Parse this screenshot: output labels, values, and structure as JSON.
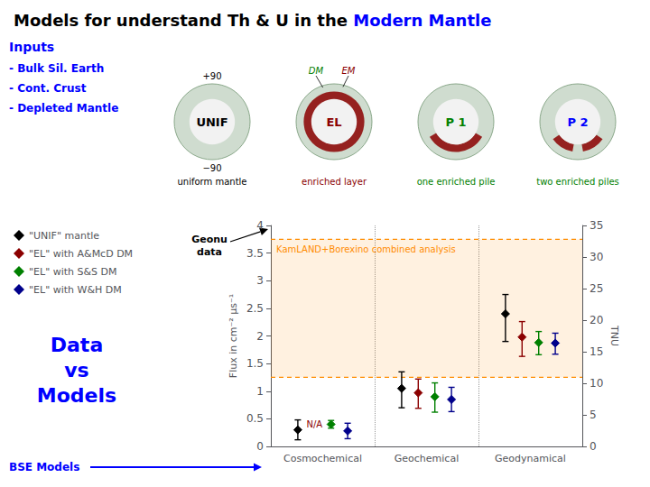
{
  "chart_data": {
    "type": "scatter",
    "title": "Models for understand Th & U in the Modern Mantle",
    "categories": [
      "Cosmochemical",
      "Geochemical",
      "Geodynamical"
    ],
    "series": [
      {
        "name": "\"UNIF\" mantle",
        "color": "#000000",
        "marker": "diamond",
        "values": [
          0.3,
          1.05,
          2.4
        ],
        "yerr_low": [
          0.18,
          0.35,
          0.5
        ],
        "yerr_high": [
          0.18,
          0.3,
          0.35
        ]
      },
      {
        "name": "\"EL\" with A&McD DM",
        "color": "#8b0000",
        "marker": "diamond",
        "values": [
          null,
          0.97,
          1.98
        ],
        "yerr_low": [
          null,
          0.28,
          0.35
        ],
        "yerr_high": [
          null,
          0.25,
          0.28
        ]
      },
      {
        "name": "\"EL\" with S&S DM",
        "color": "#008000",
        "marker": "diamond",
        "values": [
          0.4,
          0.9,
          1.88
        ],
        "yerr_low": [
          0.07,
          0.28,
          0.22
        ],
        "yerr_high": [
          0.07,
          0.25,
          0.2
        ]
      },
      {
        "name": "\"EL\" with W&H DM",
        "color": "#00008b",
        "marker": "diamond",
        "values": [
          0.28,
          0.85,
          1.87
        ],
        "yerr_low": [
          0.14,
          0.22,
          0.2
        ],
        "yerr_high": [
          0.14,
          0.22,
          0.18
        ]
      }
    ],
    "ylabel": "Flux in cm⁻² μs⁻¹",
    "ylim": [
      0,
      4
    ],
    "yticks": [
      0,
      0.5,
      1,
      1.5,
      2,
      2.5,
      3,
      3.5,
      4
    ],
    "y2label": "TNU",
    "y2lim": [
      0,
      35
    ],
    "y2ticks": [
      0,
      5,
      10,
      15,
      20,
      25,
      30,
      35
    ],
    "grid": false,
    "legend": "upper left",
    "band": {
      "label": "KamLAND+Borexino combined analysis",
      "from": 1.25,
      "to": 3.75,
      "color": "#ff8c00"
    },
    "annotations": {
      "title_highlight": {
        "text": "Modern Mantle",
        "color": "#0000ff"
      },
      "inputs": {
        "text": [
          "Inputs",
          "- Bulk Sil. Earth",
          "- Cont. Crust",
          "- Depleted Mantle"
        ],
        "color": "#0000ff"
      },
      "side_label": {
        "text": "Data\nvs\nModels",
        "color": "#0000ff"
      },
      "bse_label": {
        "text": "BSE Models",
        "color": "#0000ff"
      },
      "geonu_label": {
        "text": "Geonu\ndata",
        "color": "#000000"
      },
      "na_label": {
        "text": "N/A",
        "x": "Cosmochemical",
        "color": "#8b0000"
      }
    },
    "diagrams": [
      {
        "label": "UNIF",
        "color": "#000000",
        "top": "+90",
        "bottom": "−90",
        "caption": "uniform mantle",
        "caption_color": "#000000"
      },
      {
        "label": "EL",
        "color": "#8b0000",
        "pointers": [
          {
            "text": "DM",
            "color": "#008000"
          },
          {
            "text": "EM",
            "color": "#8b0000"
          }
        ],
        "caption": "enriched layer",
        "caption_color": "#8b0000"
      },
      {
        "label": "P 1",
        "color": "#008000",
        "caption": "one enriched pile",
        "caption_color": "#008000"
      },
      {
        "label": "P 2",
        "color": "#0000ff",
        "caption": "two enriched piles",
        "caption_color": "#008000"
      }
    ]
  }
}
